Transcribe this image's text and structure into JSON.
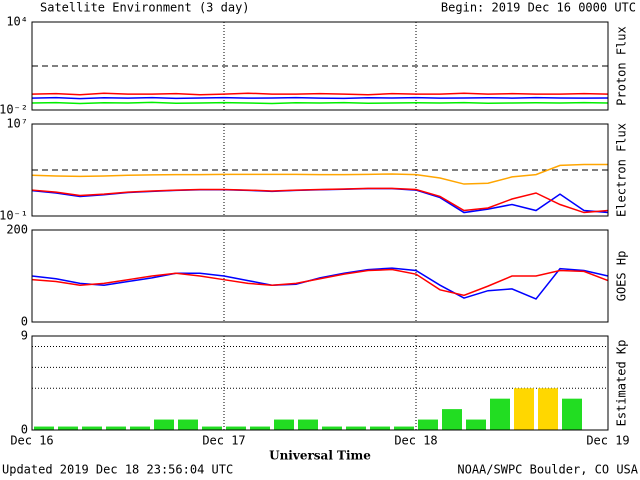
{
  "header": {
    "title": "Satellite Environment (3 day)",
    "begin": "Begin:  2019 Dec 16 0000 UTC"
  },
  "x_axis": {
    "label": "Universal Time",
    "xlim": [
      0,
      72
    ],
    "xticks": [
      {
        "value": 0,
        "label": "Dec 16"
      },
      {
        "value": 24,
        "label": "Dec 17"
      },
      {
        "value": 48,
        "label": "Dec 18"
      },
      {
        "value": 72,
        "label": "Dec 19"
      }
    ]
  },
  "chart_data": [
    {
      "type": "line",
      "y_label": "Proton Flux",
      "log": true,
      "ylim": [
        0.01,
        10000
      ],
      "yticks": [
        {
          "value": 10000,
          "label": "10⁴"
        },
        {
          "value": 0.01,
          "label": "10⁻²"
        }
      ],
      "thresholds": [
        10
      ],
      "x": [
        0,
        3,
        6,
        9,
        12,
        15,
        18,
        21,
        24,
        27,
        30,
        33,
        36,
        39,
        42,
        45,
        48,
        51,
        54,
        57,
        60,
        63,
        66,
        69,
        72
      ],
      "series": [
        {
          "color": "#ff0000",
          "values": [
            0.12,
            0.13,
            0.11,
            0.14,
            0.12,
            0.12,
            0.13,
            0.11,
            0.12,
            0.14,
            0.12,
            0.12,
            0.13,
            0.12,
            0.11,
            0.13,
            0.12,
            0.12,
            0.14,
            0.12,
            0.13,
            0.12,
            0.12,
            0.13,
            0.12
          ]
        },
        {
          "color": "#0000ff",
          "values": [
            0.065,
            0.07,
            0.06,
            0.068,
            0.065,
            0.07,
            0.062,
            0.066,
            0.07,
            0.064,
            0.066,
            0.07,
            0.065,
            0.062,
            0.068,
            0.066,
            0.07,
            0.064,
            0.066,
            0.068,
            0.065,
            0.07,
            0.066,
            0.064,
            0.066
          ]
        },
        {
          "color": "#00ee00",
          "values": [
            0.03,
            0.032,
            0.028,
            0.031,
            0.03,
            0.033,
            0.029,
            0.03,
            0.032,
            0.03,
            0.028,
            0.031,
            0.03,
            0.032,
            0.029,
            0.03,
            0.031,
            0.03,
            0.032,
            0.029,
            0.03,
            0.031,
            0.03,
            0.032,
            0.03
          ]
        }
      ]
    },
    {
      "type": "line",
      "y_label": "Electron Flux",
      "log": true,
      "ylim": [
        0.1,
        10000000
      ],
      "yticks": [
        {
          "value": 10000000,
          "label": "10⁷"
        },
        {
          "value": 0.1,
          "label": "10⁻¹"
        }
      ],
      "thresholds": [
        1000
      ],
      "x": [
        0,
        3,
        6,
        9,
        12,
        15,
        18,
        21,
        24,
        27,
        30,
        33,
        36,
        39,
        42,
        45,
        48,
        51,
        54,
        57,
        60,
        63,
        66,
        69,
        72
      ],
      "series": [
        {
          "color": "#ffa500",
          "values": [
            350,
            300,
            280,
            300,
            350,
            380,
            400,
            400,
            420,
            420,
            420,
            420,
            400,
            400,
            420,
            450,
            400,
            200,
            60,
            70,
            250,
            400,
            2500,
            3000,
            3000
          ]
        },
        {
          "color": "#0000ff",
          "values": [
            16,
            10,
            5,
            7,
            11,
            14,
            17,
            19,
            19,
            17,
            14,
            17,
            19,
            21,
            24,
            24,
            18,
            4,
            0.2,
            0.4,
            1,
            0.3,
            8,
            0.3,
            0.2
          ]
        },
        {
          "color": "#ff0000",
          "values": [
            18,
            12,
            6,
            8,
            12,
            15,
            18,
            20,
            20,
            18,
            15,
            18,
            20,
            22,
            25,
            25,
            20,
            5,
            0.3,
            0.5,
            3,
            10,
            1,
            0.2,
            0.3
          ]
        }
      ]
    },
    {
      "type": "line",
      "y_label": "GOES Hp",
      "log": false,
      "ylim": [
        0,
        200
      ],
      "yticks": [
        200,
        0
      ],
      "x": [
        0,
        3,
        6,
        9,
        12,
        15,
        18,
        21,
        24,
        27,
        30,
        33,
        36,
        39,
        42,
        45,
        48,
        51,
        54,
        57,
        60,
        63,
        66,
        69,
        72
      ],
      "series": [
        {
          "color": "#0000ff",
          "values": [
            100,
            94,
            84,
            80,
            88,
            96,
            106,
            106,
            100,
            90,
            80,
            82,
            96,
            106,
            114,
            117,
            112,
            80,
            52,
            68,
            72,
            50,
            116,
            112,
            100
          ]
        },
        {
          "color": "#ff0000",
          "values": [
            92,
            88,
            80,
            84,
            92,
            100,
            106,
            100,
            92,
            84,
            80,
            84,
            94,
            104,
            112,
            114,
            104,
            70,
            58,
            78,
            100,
            100,
            112,
            110,
            90
          ]
        }
      ]
    },
    {
      "type": "bar",
      "y_label": "Estimated Kp",
      "log": false,
      "ylim": [
        0,
        9
      ],
      "yticks": [
        9,
        0
      ],
      "grid_lines": [
        4,
        6,
        8
      ],
      "bar_width": 3,
      "x": [
        0,
        3,
        6,
        9,
        12,
        15,
        18,
        21,
        24,
        27,
        30,
        33,
        36,
        39,
        42,
        45,
        48,
        51,
        54,
        57,
        60,
        63,
        66
      ],
      "values": [
        0.33,
        0.33,
        0.33,
        0.33,
        0.33,
        1,
        1,
        0.33,
        0.33,
        0.33,
        1,
        1,
        0.33,
        0.33,
        0.33,
        0.33,
        1,
        2,
        1,
        3,
        4,
        4,
        3
      ],
      "colors": [
        "#22dd22",
        "#22dd22",
        "#22dd22",
        "#22dd22",
        "#22dd22",
        "#22dd22",
        "#22dd22",
        "#22dd22",
        "#22dd22",
        "#22dd22",
        "#22dd22",
        "#22dd22",
        "#22dd22",
        "#22dd22",
        "#22dd22",
        "#22dd22",
        "#22dd22",
        "#22dd22",
        "#22dd22",
        "#22dd22",
        "#ffd700",
        "#ffd700",
        "#22dd22"
      ]
    }
  ],
  "footer": {
    "updated": "Updated 2019 Dec 18 23:56:04 UTC",
    "source": "NOAA/SWPC Boulder, CO USA"
  }
}
